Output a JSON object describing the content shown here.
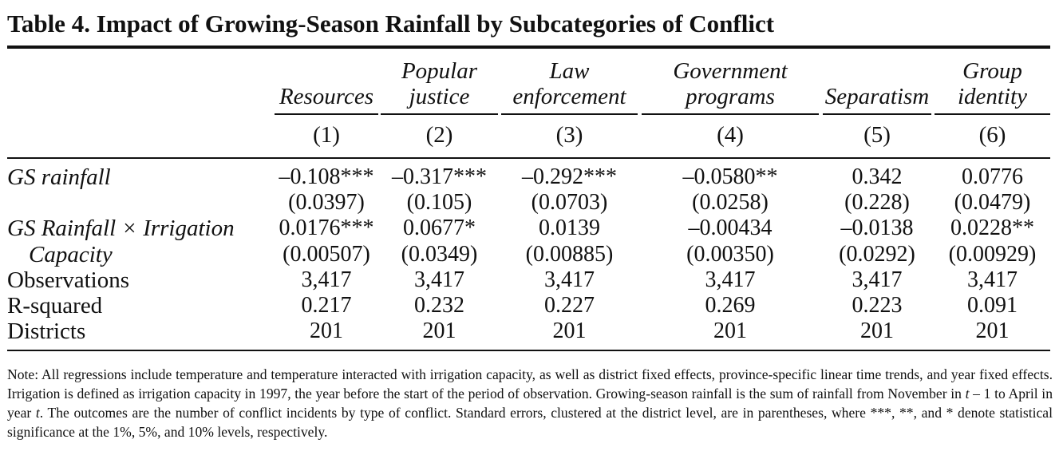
{
  "title": "Table 4. Impact of Growing-Season Rainfall by Subcategories of Conflict",
  "columns": [
    {
      "line1": "",
      "line2": "Resources",
      "number": "(1)"
    },
    {
      "line1": "Popular",
      "line2": "justice",
      "number": "(2)"
    },
    {
      "line1": "Law",
      "line2": "enforcement",
      "number": "(3)"
    },
    {
      "line1": "Government",
      "line2": "programs",
      "number": "(4)"
    },
    {
      "line1": "",
      "line2": "Separatism",
      "number": "(5)"
    },
    {
      "line1": "Group",
      "line2": "identity",
      "number": "(6)"
    }
  ],
  "rows": [
    {
      "label": "GS rainfall",
      "values": [
        "–0.108***",
        "–0.317***",
        "–0.292***",
        "–0.0580**",
        "0.342",
        "0.0776"
      ]
    },
    {
      "label": "",
      "values": [
        "(0.0397)",
        "(0.105)",
        "(0.0703)",
        "(0.0258)",
        "(0.228)",
        "(0.0479)"
      ]
    },
    {
      "label": "GS Rainfall × Irrigation",
      "values": [
        "0.0176***",
        "0.0677*",
        "0.0139",
        "–0.00434",
        "–0.0138",
        "0.0228**"
      ]
    },
    {
      "label": "Capacity",
      "values": [
        "(0.00507)",
        "(0.0349)",
        "(0.00885)",
        "(0.00350)",
        "(0.0292)",
        "(0.00929)"
      ]
    },
    {
      "label": "Observations",
      "values": [
        "3,417",
        "3,417",
        "3,417",
        "3,417",
        "3,417",
        "3,417"
      ]
    },
    {
      "label": "R-squared",
      "values": [
        "0.217",
        "0.232",
        "0.227",
        "0.269",
        "0.223",
        "0.091"
      ]
    },
    {
      "label": "Districts",
      "values": [
        "201",
        "201",
        "201",
        "201",
        "201",
        "201"
      ]
    }
  ],
  "note": {
    "part1": "Note: All regressions include temperature and temperature interacted with irrigation capacity, as well as district fixed effects, province-specific linear time trends, and year fixed effects. Irrigation is defined as irrigation capacity in 1997, the year before the start of the period of observation. Growing-season rainfall is the sum of rainfall from November in ",
    "t1": "t",
    "part2": " – 1 to April in year ",
    "t2": "t",
    "part3": ". The outcomes are the number of conflict incidents by type of conflict. Standard errors, clustered at the district level, are in parentheses, where ***, **, and * denote statistical significance at the 1%, 5%, and 10% levels, respectively."
  }
}
